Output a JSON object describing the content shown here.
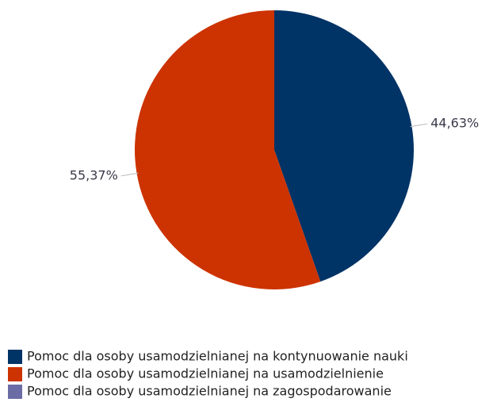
{
  "chart_data": {
    "type": "pie",
    "categories": [
      "Pomoc dla osoby usamodzielnianej na kontynuowanie nauki",
      "Pomoc dla osoby usamodzielnianej na usamodzielnienie",
      "Pomoc dla osoby usamodzielnianej na zagospodarowanie"
    ],
    "values": [
      44.63,
      55.37,
      0
    ],
    "value_labels": [
      "44,63%",
      "55,37%",
      null
    ],
    "colors": [
      "#003366",
      "#cc3300",
      "#6b6ba6"
    ],
    "legend": "bottom"
  }
}
